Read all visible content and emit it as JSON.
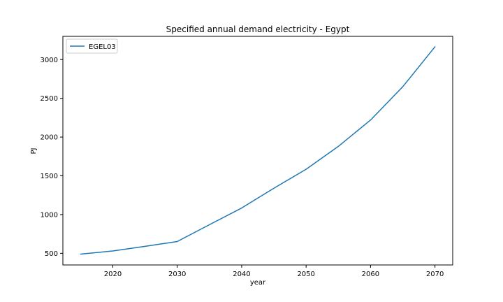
{
  "chart_data": {
    "type": "line",
    "title": "Specified annual demand electricity - Egypt",
    "xlabel": "year",
    "ylabel": "PJ",
    "xlim": [
      2012.25,
      2072.75
    ],
    "ylim": [
      350,
      3300
    ],
    "xticks": [
      2020,
      2030,
      2040,
      2050,
      2060,
      2070
    ],
    "yticks": [
      500,
      1000,
      1500,
      2000,
      2500,
      3000
    ],
    "legend_position": "top-left",
    "grid": false,
    "series": [
      {
        "name": "EGEL03",
        "color": "#1f77b4",
        "x": [
          2015,
          2020,
          2025,
          2030,
          2035,
          2040,
          2045,
          2050,
          2055,
          2060,
          2065,
          2070
        ],
        "y": [
          490,
          530,
          590,
          652,
          870,
          1085,
          1340,
          1585,
          1880,
          2220,
          2650,
          3165
        ]
      }
    ]
  }
}
